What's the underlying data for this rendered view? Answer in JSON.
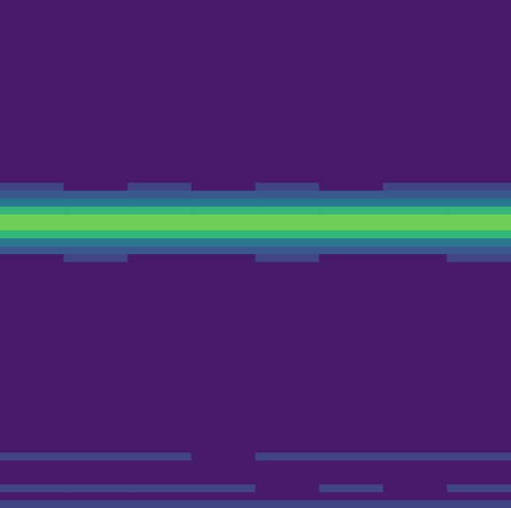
{
  "chart_data": {
    "type": "heatmap",
    "tick_labels": false,
    "zlim": [
      0,
      1
    ],
    "cells": [
      [
        0,
        0,
        0,
        0,
        0,
        0,
        0,
        0
      ],
      [
        0,
        0,
        0,
        0,
        0,
        0,
        0,
        0
      ],
      [
        0,
        0,
        0,
        0,
        0,
        0,
        0,
        0
      ],
      [
        0,
        0,
        0,
        0,
        0,
        0,
        0,
        0
      ],
      [
        0,
        0,
        0,
        0,
        0,
        0,
        0,
        0
      ],
      [
        0,
        0,
        0,
        0,
        0,
        0,
        0,
        0
      ],
      [
        0,
        0,
        0,
        0,
        0,
        0,
        0,
        0
      ],
      [
        0,
        0,
        0,
        0,
        0,
        0,
        0,
        0
      ],
      [
        0,
        0,
        0,
        0,
        0,
        0,
        0,
        0
      ],
      [
        0,
        0,
        0,
        0,
        0,
        0,
        0,
        0
      ],
      [
        0,
        0,
        0,
        0,
        0,
        0,
        0,
        0
      ],
      [
        0,
        0,
        0,
        0,
        0,
        0,
        0,
        0
      ],
      [
        0,
        0,
        0,
        0,
        0,
        0,
        0,
        0
      ],
      [
        0,
        0,
        0,
        0,
        0,
        0,
        0,
        0
      ],
      [
        0,
        0,
        0,
        0,
        0,
        0,
        0,
        0
      ],
      [
        0,
        0,
        0,
        0,
        0,
        0,
        0,
        0
      ],
      [
        0,
        0,
        0,
        0,
        0,
        0,
        0,
        0
      ],
      [
        0,
        0,
        0,
        0,
        0,
        0,
        0,
        0
      ],
      [
        0,
        0,
        0,
        0,
        0,
        0,
        0,
        0
      ],
      [
        0,
        0,
        0,
        0,
        0,
        0,
        0,
        0
      ],
      [
        0,
        0,
        0,
        0,
        0,
        0,
        0,
        0
      ],
      [
        0,
        0,
        0,
        0,
        0,
        0,
        0,
        0
      ],
      [
        0,
        0,
        0,
        0,
        0,
        0,
        0,
        0
      ],
      [
        0.2,
        0,
        0.2,
        0,
        0.2,
        0,
        0.2,
        0.2
      ],
      [
        0.35,
        0.35,
        0.35,
        0.35,
        0.35,
        0.35,
        0.35,
        0.35
      ],
      [
        0.5,
        0.5,
        0.5,
        0.5,
        0.5,
        0.5,
        0.5,
        0.5
      ],
      [
        0.7,
        0.7,
        0.7,
        0.7,
        0.7,
        0.7,
        0.7,
        0.7
      ],
      [
        0.85,
        0.85,
        0.85,
        0.85,
        0.85,
        0.85,
        0.85,
        0.85
      ],
      [
        0.85,
        0.85,
        0.85,
        0.85,
        0.85,
        0.85,
        0.85,
        0.85
      ],
      [
        0.7,
        0.7,
        0.7,
        0.7,
        0.7,
        0.7,
        0.7,
        0.7
      ],
      [
        0.5,
        0.5,
        0.5,
        0.5,
        0.5,
        0.5,
        0.5,
        0.5
      ],
      [
        0.3,
        0.3,
        0.3,
        0.3,
        0.3,
        0.3,
        0.3,
        0.3
      ],
      [
        0,
        0.2,
        0,
        0,
        0.2,
        0,
        0,
        0.2
      ],
      [
        0,
        0,
        0,
        0,
        0,
        0,
        0,
        0
      ],
      [
        0,
        0,
        0,
        0,
        0,
        0,
        0,
        0
      ],
      [
        0,
        0,
        0,
        0,
        0,
        0,
        0,
        0
      ],
      [
        0,
        0,
        0,
        0,
        0,
        0,
        0,
        0
      ],
      [
        0,
        0,
        0,
        0,
        0,
        0,
        0,
        0
      ],
      [
        0,
        0,
        0,
        0,
        0,
        0,
        0,
        0
      ],
      [
        0,
        0,
        0,
        0,
        0,
        0,
        0,
        0
      ],
      [
        0,
        0,
        0,
        0,
        0,
        0,
        0,
        0
      ],
      [
        0,
        0,
        0,
        0,
        0,
        0,
        0,
        0
      ],
      [
        0,
        0,
        0,
        0,
        0,
        0,
        0,
        0
      ],
      [
        0,
        0,
        0,
        0,
        0,
        0,
        0,
        0
      ],
      [
        0,
        0,
        0,
        0,
        0,
        0,
        0,
        0
      ],
      [
        0,
        0,
        0,
        0,
        0,
        0,
        0,
        0
      ],
      [
        0,
        0,
        0,
        0,
        0,
        0,
        0,
        0
      ],
      [
        0,
        0,
        0,
        0,
        0,
        0,
        0,
        0
      ],
      [
        0,
        0,
        0,
        0,
        0,
        0,
        0,
        0
      ],
      [
        0,
        0,
        0,
        0,
        0,
        0,
        0,
        0
      ],
      [
        0,
        0,
        0,
        0,
        0,
        0,
        0,
        0
      ],
      [
        0,
        0,
        0,
        0,
        0,
        0,
        0,
        0
      ],
      [
        0,
        0,
        0,
        0,
        0,
        0,
        0,
        0
      ],
      [
        0,
        0,
        0,
        0,
        0,
        0,
        0,
        0
      ],
      [
        0,
        0,
        0,
        0,
        0,
        0,
        0,
        0
      ],
      [
        0,
        0,
        0,
        0,
        0,
        0,
        0,
        0
      ],
      [
        0,
        0,
        0,
        0,
        0,
        0,
        0,
        0
      ],
      [
        0.2,
        0.2,
        0.2,
        0,
        0.2,
        0.2,
        0.2,
        0.2
      ],
      [
        0,
        0,
        0,
        0,
        0,
        0,
        0,
        0
      ],
      [
        0,
        0,
        0,
        0,
        0,
        0,
        0,
        0
      ],
      [
        0,
        0,
        0,
        0,
        0,
        0,
        0,
        0
      ],
      [
        0.2,
        0.2,
        0.2,
        0.2,
        0,
        0.2,
        0,
        0.2
      ],
      [
        0,
        0,
        0,
        0,
        0,
        0,
        0,
        0
      ],
      [
        0.2,
        0.2,
        0.2,
        0.2,
        0.2,
        0.2,
        0.2,
        0.2
      ]
    ]
  }
}
